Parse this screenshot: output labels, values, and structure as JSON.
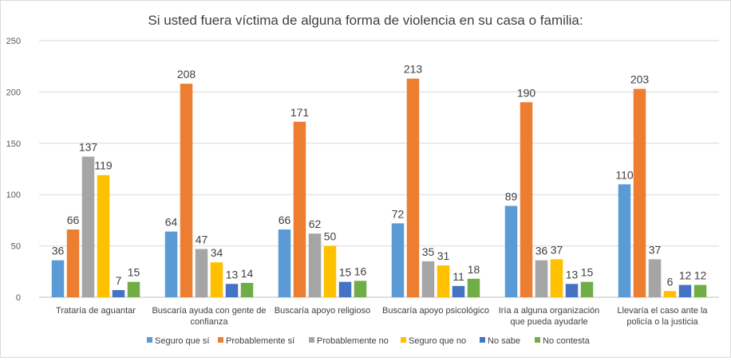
{
  "chart_data": {
    "type": "bar",
    "title": "Si usted fuera víctima de alguna forma de violencia en su casa o familia:",
    "categories": [
      [
        "Trataría de aguantar"
      ],
      [
        "Buscaría ayuda con gente de",
        "confianza"
      ],
      [
        "Buscaría apoyo religioso"
      ],
      [
        "Buscaría apoyo psicológico"
      ],
      [
        "Iría a alguna organización",
        "que pueda ayudarle"
      ],
      [
        "Llevaría el caso ante la",
        "policía o la justicia"
      ]
    ],
    "series": [
      {
        "name": "Seguro que sí",
        "color": "#5b9bd5",
        "values": [
          36,
          64,
          66,
          72,
          89,
          110
        ]
      },
      {
        "name": "Probablemente sí",
        "color": "#ed7d31",
        "values": [
          66,
          208,
          171,
          213,
          190,
          203
        ]
      },
      {
        "name": "Probablemente no",
        "color": "#a5a5a5",
        "values": [
          137,
          47,
          62,
          35,
          36,
          37
        ]
      },
      {
        "name": "Seguro que no",
        "color": "#ffc000",
        "values": [
          119,
          34,
          50,
          31,
          37,
          6
        ]
      },
      {
        "name": "No sabe",
        "color": "#4472c4",
        "values": [
          7,
          13,
          15,
          11,
          13,
          12
        ]
      },
      {
        "name": "No contesta",
        "color": "#70ad47",
        "values": [
          15,
          14,
          16,
          18,
          15,
          12
        ]
      }
    ],
    "xlabel": "",
    "ylabel": "",
    "ylim": [
      0,
      250
    ],
    "yticks": [
      0,
      50,
      100,
      150,
      200,
      250
    ],
    "grid": true,
    "legend": "bottom",
    "data_labels": true
  }
}
